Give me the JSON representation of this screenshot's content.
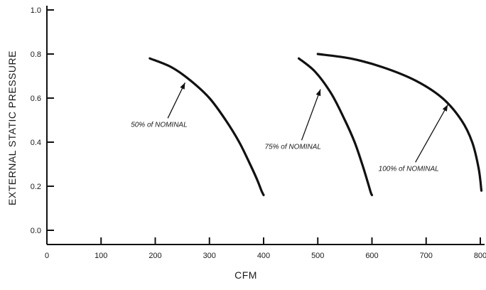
{
  "chart_data": {
    "type": "line",
    "title": "",
    "xlabel": "CFM",
    "ylabel": "EXTERNAL STATIC PRESSURE",
    "xlim": [
      0,
      800
    ],
    "ylim": [
      0.0,
      1.0
    ],
    "x_ticks": [
      0,
      100,
      200,
      300,
      400,
      500,
      600,
      700,
      800
    ],
    "y_ticks": [
      0.0,
      0.2,
      0.4,
      0.6,
      0.8,
      1.0
    ],
    "x_tick_labels": [
      "0",
      "100",
      "200",
      "300",
      "400",
      "500",
      "600",
      "700",
      "800"
    ],
    "y_tick_labels": [
      "0.0",
      "0.2",
      "0.4",
      "0.6",
      "0.8",
      "1.0"
    ],
    "grid": false,
    "series": [
      {
        "name": "50% of NOMINAL",
        "x": [
          190,
          230,
          265,
          300,
          330,
          355,
          375,
          388,
          396,
          400
        ],
        "y": [
          0.78,
          0.74,
          0.68,
          0.6,
          0.5,
          0.4,
          0.3,
          0.23,
          0.18,
          0.16
        ]
      },
      {
        "name": "75% of NOMINAL",
        "x": [
          465,
          495,
          525,
          550,
          568,
          582,
          592,
          598,
          600
        ],
        "y": [
          0.78,
          0.72,
          0.62,
          0.5,
          0.4,
          0.3,
          0.22,
          0.17,
          0.16
        ]
      },
      {
        "name": "100% of NOMINAL",
        "x": [
          500,
          560,
          620,
          680,
          730,
          765,
          785,
          797,
          802
        ],
        "y": [
          0.8,
          0.78,
          0.74,
          0.68,
          0.6,
          0.5,
          0.4,
          0.28,
          0.18
        ]
      }
    ],
    "annotations": [
      {
        "text": "50% of NOMINAL",
        "x": 155,
        "y": 0.47,
        "arrow_to": [
          255,
          0.67
        ]
      },
      {
        "text": "75% of NOMINAL",
        "x": 402,
        "y": 0.37,
        "arrow_to": [
          505,
          0.64
        ]
      },
      {
        "text": "100% of NOMINAL",
        "x": 612,
        "y": 0.27,
        "arrow_to": [
          740,
          0.57
        ]
      }
    ],
    "line_color": "#111111"
  }
}
